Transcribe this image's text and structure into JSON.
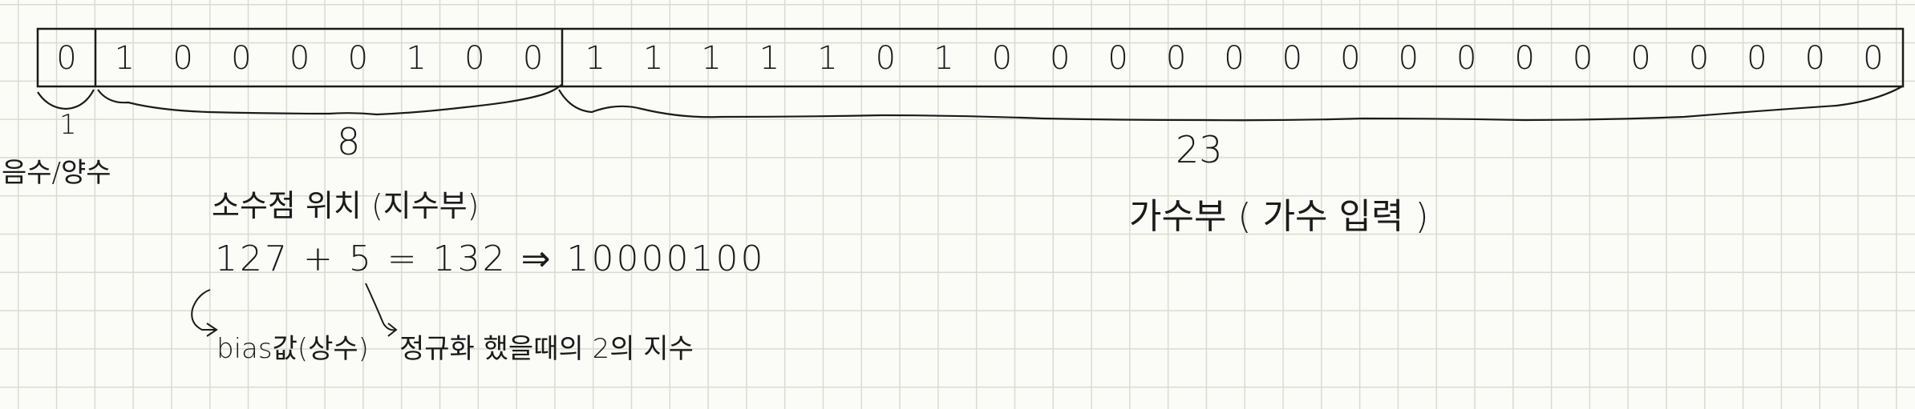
{
  "bits": {
    "sign": [
      "0"
    ],
    "exponent": [
      "1",
      "0",
      "0",
      "0",
      "0",
      "1",
      "0",
      "0"
    ],
    "mantissa": [
      "1",
      "1",
      "1",
      "1",
      "1",
      "0",
      "1",
      "0",
      "0",
      "0",
      "0",
      "0",
      "0",
      "0",
      "0",
      "0",
      "0",
      "0",
      "0",
      "0",
      "0",
      "0",
      "0"
    ]
  },
  "labels": {
    "sign_count": "1",
    "sign_name": "음수/양수",
    "exponent_count": "8",
    "exponent_name": "소수점 위치 (지수부)",
    "mantissa_count": "23",
    "mantissa_name": "가수부 ( 가수 입력 )"
  },
  "formula": {
    "text": "127 + 5  = 132 ⇒ 10000100",
    "bias_note": "bias값(상수)",
    "exp_note": "정규화 했을때의 2의 지수"
  },
  "colors": {
    "ink": "#1b1b1b",
    "grid": "#d9dbd2",
    "paper": "#fbfbf8"
  }
}
